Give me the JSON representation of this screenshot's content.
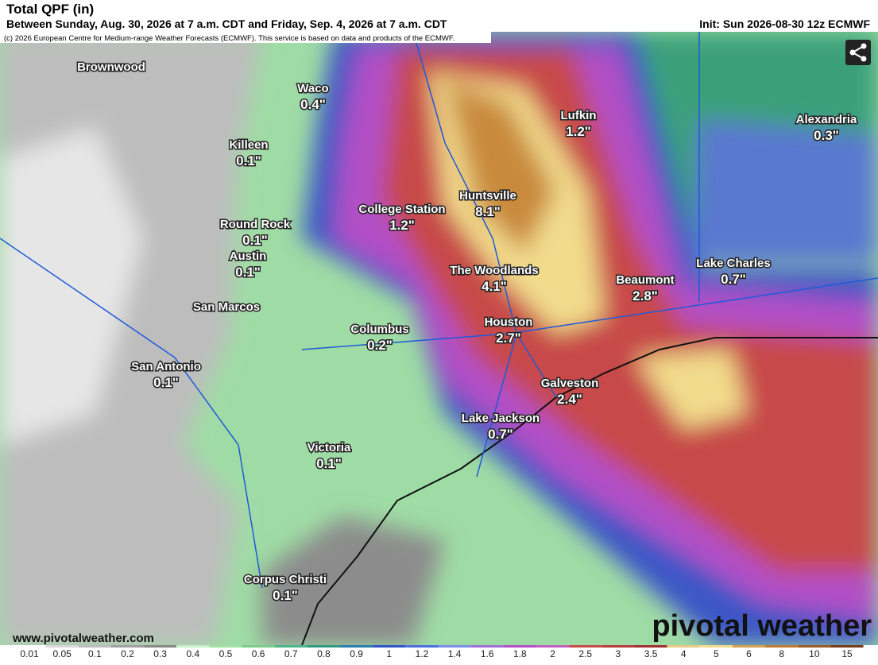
{
  "header": {
    "title": "Total QPF (in)",
    "subtitle": "Between Sunday, Aug. 30, 2026 at 7 a.m. CDT and Friday, Sep. 4, 2026 at 7 a.m. CDT",
    "init": "Init: Sun 2026-08-30 12z ECMWF",
    "copyright": "(c) 2026 European Centre for Medium-range Weather Forecasts (ECMWF). This service is based on data and products of the ECMWF."
  },
  "cities": [
    {
      "name": "Brownwood"
    },
    {
      "name": "Waco",
      "value": "0.4\""
    },
    {
      "name": "Killeen",
      "value": "0.1\""
    },
    {
      "name": "Round Rock",
      "value": "0.1\""
    },
    {
      "name": "Austin",
      "value": "0.1\""
    },
    {
      "name": "San Marcos"
    },
    {
      "name": "San Antonio",
      "value": "0.1\""
    },
    {
      "name": "College Station",
      "value": "1.2\""
    },
    {
      "name": "Huntsville",
      "value": "8.1\""
    },
    {
      "name": "Lufkin",
      "value": "1.2\""
    },
    {
      "name": "Alexandria",
      "value": "0.3\""
    },
    {
      "name": "The Woodlands",
      "value": "4.1\""
    },
    {
      "name": "Beaumont",
      "value": "2.8\""
    },
    {
      "name": "Lake Charles",
      "value": "0.7\""
    },
    {
      "name": "Columbus",
      "value": "0.2\""
    },
    {
      "name": "Houston",
      "value": "2.7\""
    },
    {
      "name": "Galveston",
      "value": "2.4\""
    },
    {
      "name": "Lake Jackson",
      "value": "0.7\""
    },
    {
      "name": "Victoria",
      "value": "0.1\""
    },
    {
      "name": "Corpus Christi",
      "value": "0.1\""
    }
  ],
  "footer": {
    "website": "www.pivotalweather.com",
    "brand": "pivotal weather"
  },
  "colorbar": [
    "0.01",
    "0.05",
    "0.1",
    "0.2",
    "0.3",
    "0.4",
    "0.5",
    "0.6",
    "0.7",
    "0.8",
    "0.9",
    "1",
    "1.2",
    "1.4",
    "1.6",
    "1.8",
    "2",
    "2.5",
    "3",
    "3.5",
    "4",
    "5",
    "6",
    "8",
    "10",
    "15"
  ]
}
